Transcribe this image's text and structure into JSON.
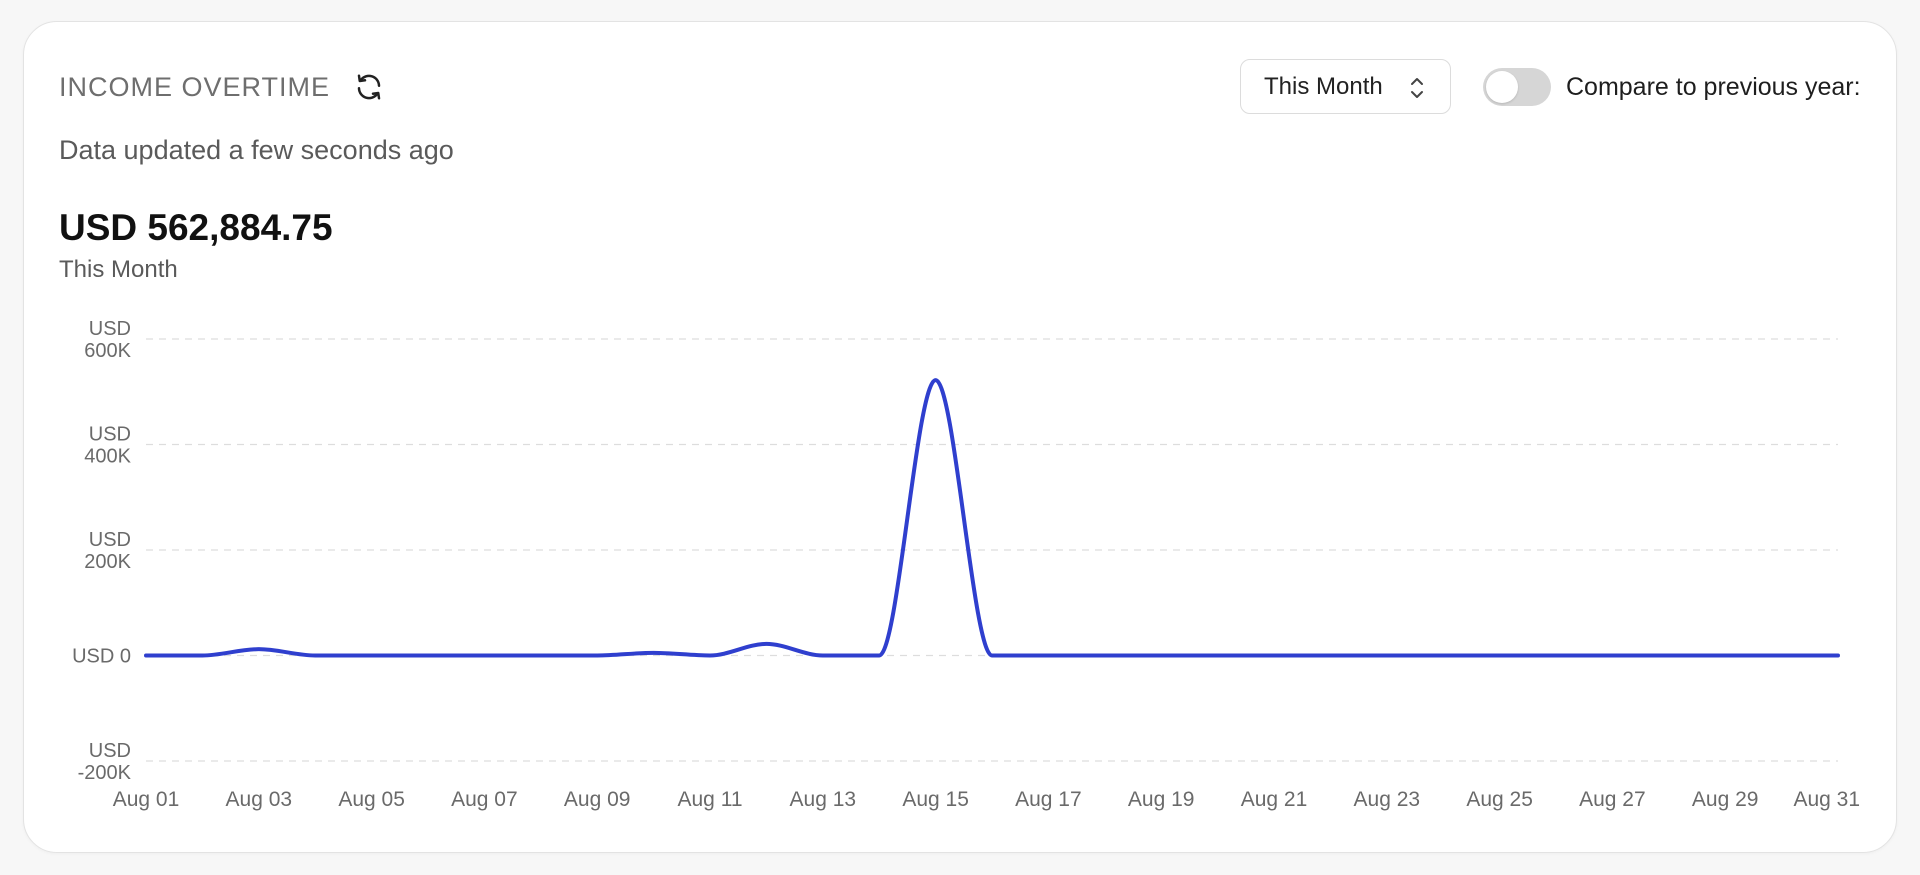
{
  "header": {
    "title": "INCOME OVERTIME",
    "updated": "Data updated a few seconds ago",
    "total": "USD 562,884.75",
    "period_label": "This Month"
  },
  "controls": {
    "range_select_value": "This Month",
    "compare_label": "Compare to previous year:",
    "compare_enabled": false
  },
  "icons": {
    "refresh": "refresh-icon",
    "select_chevron": "chevron-up-down-icon"
  },
  "colors": {
    "line": "#2f3fce",
    "grid": "#dddddd",
    "axis_text": "#6a6a6a"
  },
  "chart_data": {
    "type": "line",
    "title": "INCOME OVERTIME",
    "xlabel": "",
    "ylabel": "",
    "x_ticks": [
      "Aug 01",
      "Aug 03",
      "Aug 05",
      "Aug 07",
      "Aug 09",
      "Aug 11",
      "Aug 13",
      "Aug 15",
      "Aug 17",
      "Aug 19",
      "Aug 21",
      "Aug 23",
      "Aug 25",
      "Aug 27",
      "Aug 29",
      "Aug 31"
    ],
    "y_ticks": [
      {
        "value": 600000,
        "line1": "USD",
        "line2": "600K"
      },
      {
        "value": 400000,
        "line1": "USD",
        "line2": "400K"
      },
      {
        "value": 200000,
        "line1": "USD",
        "line2": "200K"
      },
      {
        "value": 0,
        "line1": "",
        "line2": "USD 0"
      },
      {
        "value": -200000,
        "line1": "USD",
        "line2": "-200K"
      }
    ],
    "ylim": [
      -200000,
      600000
    ],
    "grid": true,
    "grid_style": "dashed",
    "series": [
      {
        "x": [
          "Aug 01",
          "Aug 02",
          "Aug 03",
          "Aug 04",
          "Aug 05",
          "Aug 06",
          "Aug 07",
          "Aug 08",
          "Aug 09",
          "Aug 10",
          "Aug 11",
          "Aug 12",
          "Aug 13",
          "Aug 14",
          "Aug 15",
          "Aug 16",
          "Aug 17",
          "Aug 18",
          "Aug 19",
          "Aug 20",
          "Aug 21",
          "Aug 22",
          "Aug 23",
          "Aug 24",
          "Aug 25",
          "Aug 26",
          "Aug 27",
          "Aug 28",
          "Aug 29",
          "Aug 30",
          "Aug 31"
        ],
        "values": [
          0,
          0,
          12000,
          0,
          0,
          0,
          0,
          0,
          0,
          5000,
          0,
          22000,
          0,
          0,
          522000,
          0,
          0,
          0,
          0,
          0,
          0,
          0,
          0,
          0,
          0,
          0,
          0,
          0,
          0,
          0,
          0
        ]
      }
    ]
  }
}
